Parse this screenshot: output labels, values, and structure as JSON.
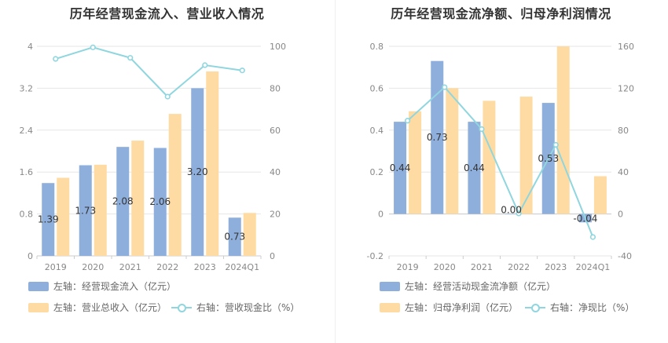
{
  "chart_data": [
    {
      "type": "bar",
      "title": "历年经营现金流入、营业收入情况",
      "categories": [
        "2019",
        "2020",
        "2021",
        "2022",
        "2023",
        "2024Q1"
      ],
      "left_axis": {
        "ylim": [
          0,
          4
        ],
        "ticks": [
          "0",
          "0.8",
          "1.6",
          "2.4",
          "3.2",
          "4"
        ]
      },
      "right_axis": {
        "ylim": [
          0,
          100
        ],
        "ticks": [
          "0",
          "20",
          "40",
          "60",
          "80",
          "100"
        ]
      },
      "series": [
        {
          "name": "左轴：经营现金流入（亿元）",
          "axis": "left",
          "kind": "bar",
          "color": "#8eaedc",
          "values": [
            1.39,
            1.73,
            2.08,
            2.06,
            3.2,
            0.73
          ],
          "labels": [
            "1.39",
            "1.73",
            "2.08",
            "2.06",
            "3.20",
            "0.73"
          ]
        },
        {
          "name": "左轴：营业总收入（亿元）",
          "axis": "left",
          "kind": "bar",
          "color": "#ffdba4",
          "values": [
            1.49,
            1.74,
            2.2,
            2.71,
            3.52,
            0.82
          ]
        },
        {
          "name": "右轴：营收现金比（%）",
          "axis": "right",
          "kind": "line",
          "color": "#8fd6df",
          "values": [
            94,
            99.5,
            94.5,
            76,
            91,
            88.5
          ]
        }
      ],
      "legend": [
        "左轴：经营现金流入（亿元）",
        "左轴：营业总收入（亿元）",
        "右轴：营收现金比（%）"
      ]
    },
    {
      "type": "bar",
      "title": "历年经营现金流净额、归母净利润情况",
      "categories": [
        "2019",
        "2020",
        "2021",
        "2022",
        "2023",
        "2024Q1"
      ],
      "left_axis": {
        "ylim": [
          -0.2,
          0.8
        ],
        "ticks": [
          "-0.2",
          "0",
          "0.2",
          "0.4",
          "0.6",
          "0.8"
        ]
      },
      "right_axis": {
        "ylim": [
          -40,
          160
        ],
        "ticks": [
          "-40",
          "0",
          "40",
          "80",
          "120",
          "160"
        ]
      },
      "series": [
        {
          "name": "左轴：经营活动现金流净额（亿元）",
          "axis": "left",
          "kind": "bar",
          "color": "#8eaedc",
          "values": [
            0.44,
            0.73,
            0.44,
            0.002,
            0.53,
            -0.04
          ],
          "labels": [
            "0.44",
            "0.73",
            "0.44",
            "0.00",
            "0.53",
            "-0.04"
          ]
        },
        {
          "name": "左轴：归母净利润（亿元）",
          "axis": "left",
          "kind": "bar",
          "color": "#ffdba4",
          "values": [
            0.49,
            0.6,
            0.54,
            0.56,
            0.8,
            0.18
          ]
        },
        {
          "name": "右轴：净现比（%）",
          "axis": "right",
          "kind": "line",
          "color": "#8fd6df",
          "values": [
            89,
            121,
            81,
            0.5,
            66,
            -22
          ]
        }
      ],
      "legend": [
        "左轴：经营活动现金流净额（亿元）",
        "左轴：归母净利润（亿元）",
        "右轴：净现比（%）"
      ]
    }
  ]
}
